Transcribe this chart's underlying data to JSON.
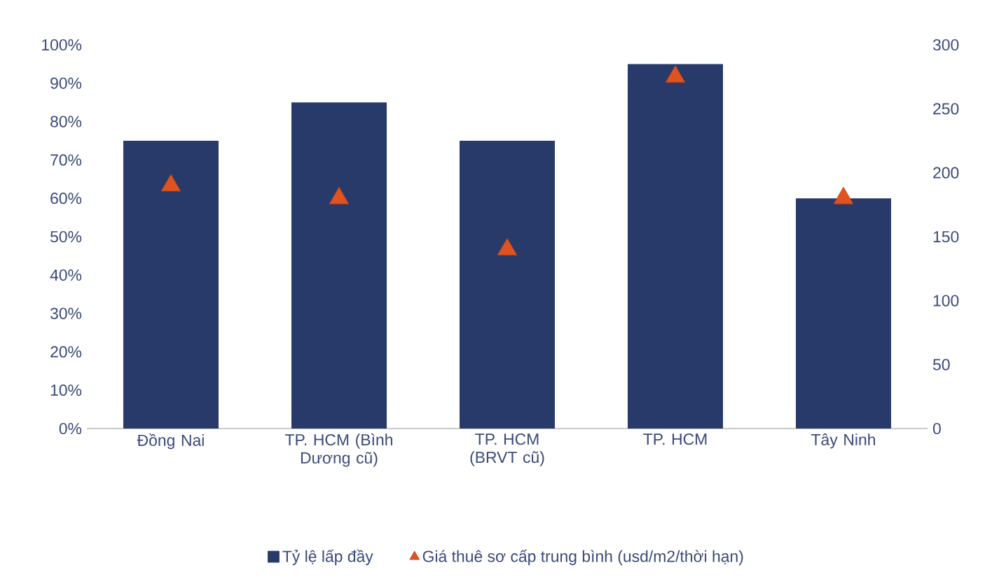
{
  "chart_data": {
    "type": "bar",
    "categories": [
      "Đồng Nai",
      "TP. HCM (Bình Dương cũ)",
      "TP. HCM (BRVT cũ)",
      "TP. HCM",
      "Tây Ninh"
    ],
    "series": [
      {
        "name": "Tỷ lệ lấp đầy",
        "color": "#283a6a",
        "values": [
          75,
          85,
          75,
          95,
          60
        ]
      },
      {
        "name": "Giá thuê sơ cấp trung bình (usd/m2/thời hạn)",
        "type": "scatter",
        "axis": "y2",
        "marker": "triangle",
        "color": "#e0521f",
        "values": [
          190,
          180,
          140,
          275,
          180
        ]
      }
    ],
    "ylim": [
      0,
      100
    ],
    "yticks": [
      {
        "value": 0,
        "label": "0%"
      },
      {
        "value": 10,
        "label": "10%"
      },
      {
        "value": 20,
        "label": "20%"
      },
      {
        "value": 30,
        "label": "30%"
      },
      {
        "value": 40,
        "label": "40%"
      },
      {
        "value": 50,
        "label": "50%"
      },
      {
        "value": 60,
        "label": "60%"
      },
      {
        "value": 70,
        "label": "70%"
      },
      {
        "value": 80,
        "label": "80%"
      },
      {
        "value": 90,
        "label": "90%"
      },
      {
        "value": 100,
        "label": "100%"
      }
    ],
    "y2lim": [
      0,
      300
    ],
    "y2ticks": [
      0,
      50,
      100,
      150,
      200,
      250,
      300
    ],
    "grid": false,
    "legend": "bottom"
  }
}
